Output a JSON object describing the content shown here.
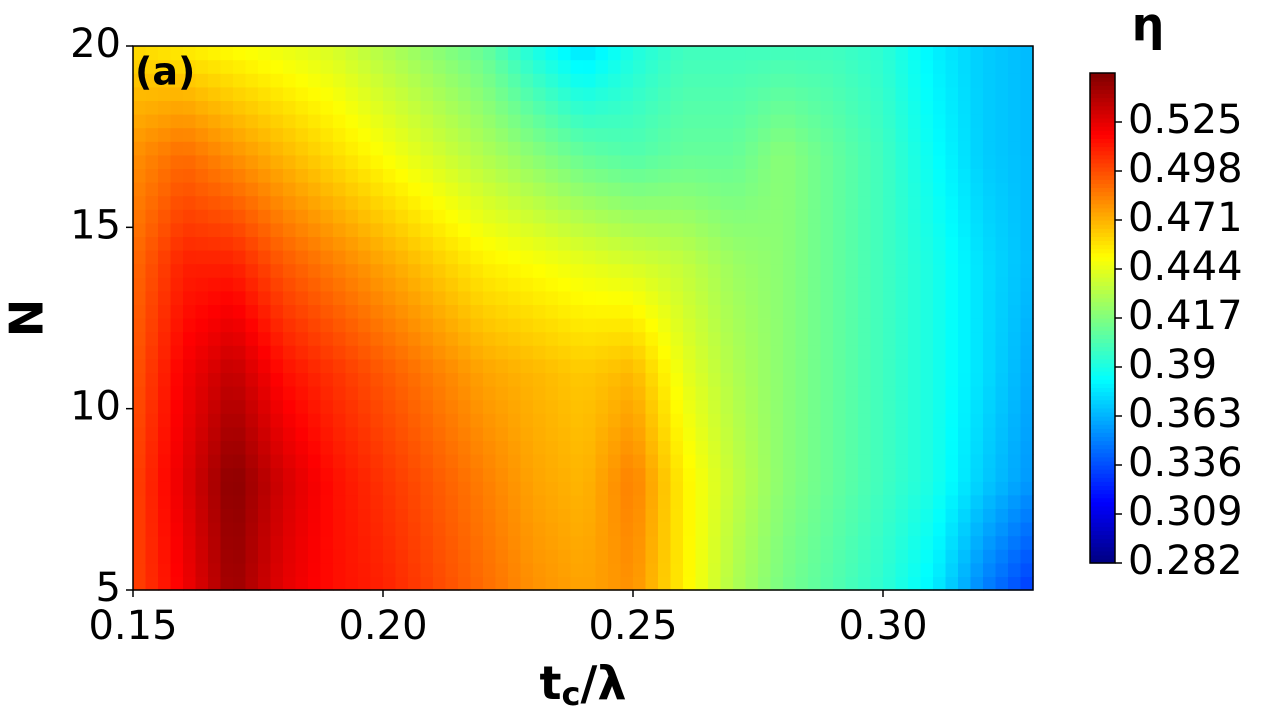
{
  "chart_data": {
    "type": "contour",
    "annotation": "(a)",
    "xlabel": [
      "t",
      "c",
      "/λ"
    ],
    "ylabel": "N",
    "colorbar_label": "η",
    "colormap": "jet",
    "x": [
      0.15,
      0.16,
      0.17,
      0.18,
      0.19,
      0.2,
      0.21,
      0.22,
      0.23,
      0.24,
      0.25,
      0.26,
      0.27,
      0.28,
      0.29,
      0.3,
      0.31,
      0.32,
      0.33
    ],
    "y": [
      5,
      8,
      11,
      14,
      17,
      20
    ],
    "z": [
      [
        0.5,
        0.52,
        0.545,
        0.525,
        0.515,
        0.51,
        0.5,
        0.49,
        0.48,
        0.475,
        0.48,
        0.455,
        0.43,
        0.415,
        0.405,
        0.395,
        0.38,
        0.35,
        0.33
      ],
      [
        0.5,
        0.525,
        0.55,
        0.53,
        0.515,
        0.505,
        0.495,
        0.485,
        0.475,
        0.47,
        0.485,
        0.455,
        0.435,
        0.42,
        0.41,
        0.4,
        0.39,
        0.37,
        0.355
      ],
      [
        0.495,
        0.52,
        0.535,
        0.515,
        0.505,
        0.495,
        0.485,
        0.475,
        0.47,
        0.465,
        0.47,
        0.445,
        0.43,
        0.42,
        0.41,
        0.4,
        0.39,
        0.375,
        0.36
      ],
      [
        0.49,
        0.51,
        0.51,
        0.495,
        0.485,
        0.475,
        0.465,
        0.455,
        0.45,
        0.445,
        0.44,
        0.435,
        0.425,
        0.42,
        0.41,
        0.4,
        0.39,
        0.375,
        0.365
      ],
      [
        0.48,
        0.49,
        0.48,
        0.47,
        0.46,
        0.45,
        0.44,
        0.43,
        0.42,
        0.41,
        0.405,
        0.41,
        0.41,
        0.42,
        0.41,
        0.4,
        0.385,
        0.37,
        0.365
      ],
      [
        0.46,
        0.455,
        0.45,
        0.445,
        0.44,
        0.43,
        0.42,
        0.41,
        0.39,
        0.375,
        0.39,
        0.4,
        0.4,
        0.4,
        0.4,
        0.395,
        0.38,
        0.37,
        0.365
      ]
    ],
    "xlim": [
      0.15,
      0.33
    ],
    "ylim": [
      5,
      20
    ],
    "xticks": [
      0.15,
      {
        "value": 0.2,
        "label": "0.20"
      },
      0.25,
      {
        "value": 0.3,
        "label": "0.30"
      }
    ],
    "yticks": [
      5,
      10,
      15,
      20
    ],
    "clim": [
      0.282,
      0.552
    ],
    "cticks": [
      0.282,
      0.309,
      0.336,
      0.363,
      0.39,
      0.417,
      0.444,
      0.471,
      0.498,
      0.525
    ]
  }
}
